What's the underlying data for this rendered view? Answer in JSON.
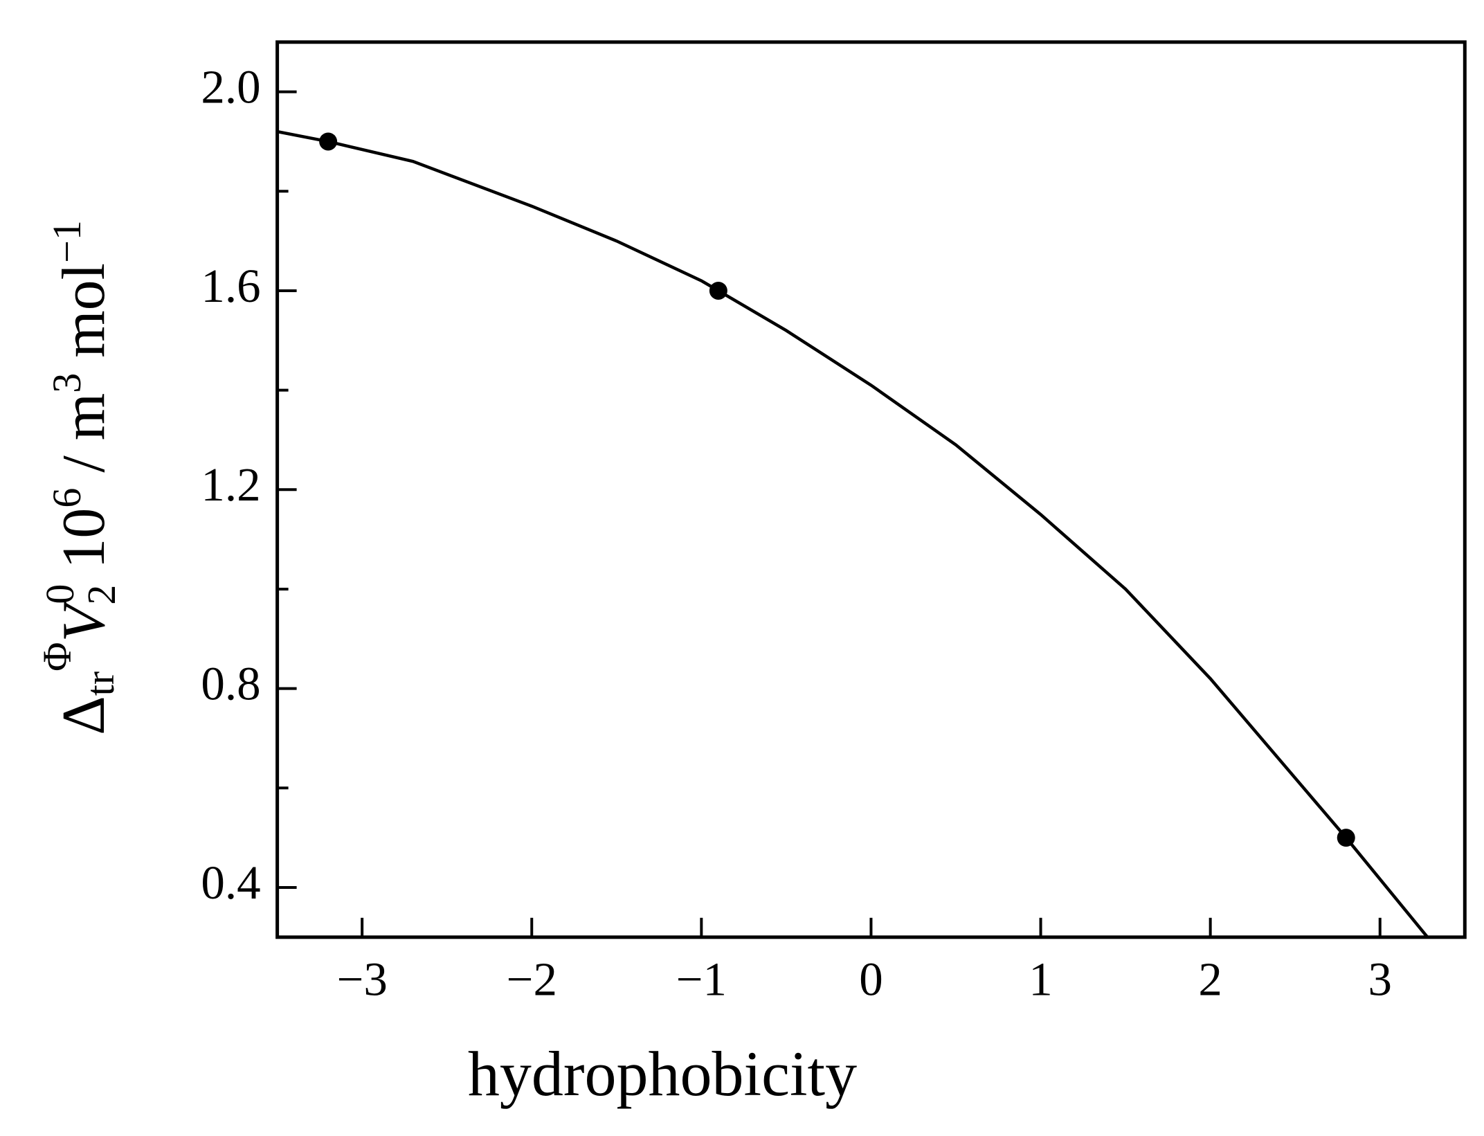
{
  "chart_data": {
    "type": "scatter",
    "x_label": "hydrophobicity",
    "y_label_parts": [
      "Δ",
      "tr",
      "Φ",
      "V",
      "2",
      "0",
      " 10",
      "6",
      " / m",
      "3",
      " mol",
      "−1"
    ],
    "series": [
      {
        "type": "scatter",
        "color": "#000000",
        "x": [
          -3.2,
          -0.9,
          2.8
        ],
        "values": [
          1.9,
          1.6,
          0.5
        ]
      },
      {
        "type": "line",
        "color": "#000000",
        "x": [
          -3.5,
          -3.2,
          -2.7,
          -2.0,
          -1.5,
          -1.0,
          -0.5,
          0.0,
          0.5,
          1.0,
          1.5,
          2.0,
          2.5,
          2.8,
          3.28
        ],
        "values": [
          1.92,
          1.9,
          1.86,
          1.77,
          1.7,
          1.62,
          1.52,
          1.41,
          1.29,
          1.15,
          1.0,
          0.82,
          0.62,
          0.5,
          0.3
        ]
      }
    ],
    "xlim": [
      -3.5,
      3.5
    ],
    "ylim": [
      0.3,
      2.1
    ],
    "xticks": [
      {
        "value": -3,
        "label": "−3"
      },
      {
        "value": -2,
        "label": "−2"
      },
      {
        "value": -1,
        "label": "−1"
      },
      0,
      1,
      2,
      3
    ],
    "yticks": [
      {
        "value": 0.4,
        "label": "0.4"
      },
      {
        "value": 0.8,
        "label": "0.8"
      },
      {
        "value": 1.2,
        "label": "1.2"
      },
      {
        "value": 1.6,
        "label": "1.6"
      },
      {
        "value": 2.0,
        "label": "2.0"
      }
    ],
    "yminor_ticks": [
      0.6,
      1.0,
      1.4,
      1.8
    ],
    "grid": false
  }
}
